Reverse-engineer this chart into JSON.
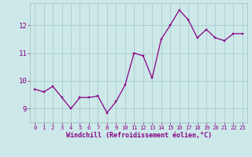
{
  "x": [
    0,
    1,
    2,
    3,
    4,
    5,
    6,
    7,
    8,
    9,
    10,
    11,
    12,
    13,
    14,
    15,
    16,
    17,
    18,
    19,
    20,
    21,
    22,
    23
  ],
  "y": [
    9.7,
    9.6,
    9.8,
    9.4,
    9.0,
    9.4,
    9.4,
    9.45,
    8.85,
    9.25,
    9.85,
    11.0,
    10.9,
    10.1,
    11.5,
    12.0,
    12.55,
    12.2,
    11.55,
    11.85,
    11.55,
    11.45,
    11.7,
    11.7
  ],
  "line_color": "#880088",
  "marker_color": "#880088",
  "bg_color": "#cce8e8",
  "grid_color": "#aacccc",
  "text_color": "#880088",
  "xlabel": "Windchill (Refroidissement éolien,°C)",
  "xlim": [
    -0.5,
    23.5
  ],
  "ylim": [
    8.5,
    12.8
  ],
  "yticks": [
    9,
    10,
    11,
    12
  ],
  "xticks": [
    0,
    1,
    2,
    3,
    4,
    5,
    6,
    7,
    8,
    9,
    10,
    11,
    12,
    13,
    14,
    15,
    16,
    17,
    18,
    19,
    20,
    21,
    22,
    23
  ],
  "xtick_fontsize": 5.0,
  "ytick_fontsize": 6.5,
  "xlabel_fontsize": 6.0,
  "marker_size": 2.0,
  "line_width": 0.9
}
